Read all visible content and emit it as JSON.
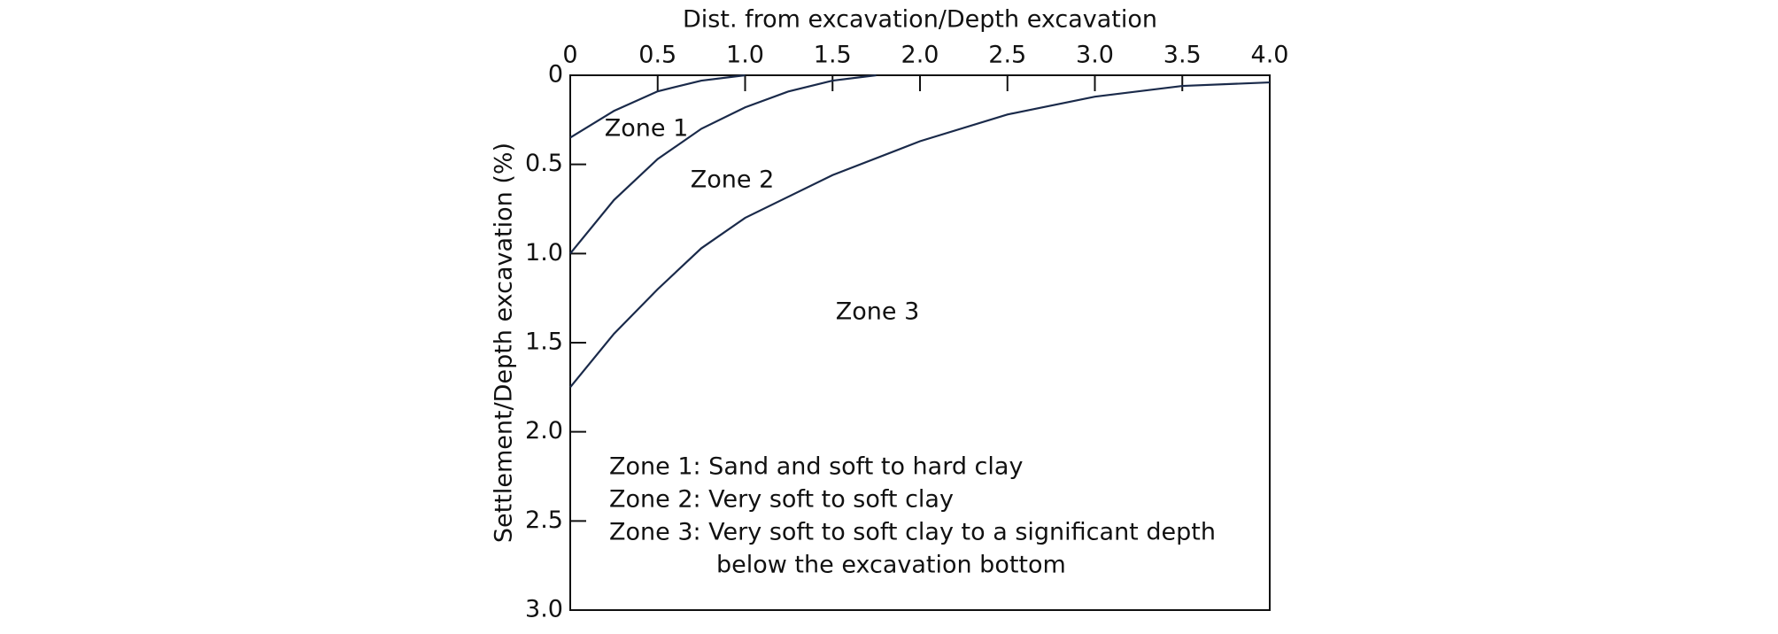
{
  "chart_data": {
    "type": "line",
    "xlabel": "Dist. from excavation/Depth excavation",
    "ylabel": "Settlement/Depth excavation (%)",
    "xlim": [
      0,
      4.0
    ],
    "xticks": [
      0,
      0.5,
      {
        "value": 1,
        "label": "1.0"
      },
      1.5,
      {
        "value": 2,
        "label": "2.0"
      },
      2.5,
      {
        "value": 3,
        "label": "3.0"
      },
      3.5,
      {
        "value": 4,
        "label": "4.0"
      }
    ],
    "ylim": [
      0,
      3.0
    ],
    "yticks": [
      0,
      0.5,
      {
        "value": 1,
        "label": "1.0"
      },
      1.5,
      {
        "value": 2,
        "label": "2.0"
      },
      2.5,
      {
        "value": 3,
        "label": "3.0"
      }
    ],
    "y_inverted": true,
    "series": [
      {
        "color": "#1a2a4a",
        "x": [
          0,
          0.25,
          0.5,
          0.75,
          1.0
        ],
        "values": [
          0.35,
          0.2,
          0.09,
          0.03,
          0
        ]
      },
      {
        "color": "#1a2a4a",
        "x": [
          0,
          0.25,
          0.5,
          0.75,
          1.0,
          1.25,
          1.5,
          1.75
        ],
        "values": [
          1.0,
          0.7,
          0.47,
          0.3,
          0.18,
          0.09,
          0.03,
          0
        ]
      },
      {
        "color": "#1a2a4a",
        "x": [
          0,
          0.25,
          0.5,
          0.75,
          1.0,
          1.5,
          2.0,
          2.5,
          3.0,
          3.5,
          4.0
        ],
        "values": [
          1.75,
          1.45,
          1.2,
          0.97,
          0.8,
          0.56,
          0.37,
          0.22,
          0.12,
          0.06,
          0.04
        ]
      }
    ],
    "annotations": [
      "Zone 1",
      "Zone 2",
      "Zone 3"
    ],
    "notes": [
      "Zone 1: Sand and soft to hard clay",
      "Zone 2: Very soft to soft clay",
      "Zone 3: Very soft to soft clay to a significant depth",
      "below the excavation bottom"
    ]
  }
}
